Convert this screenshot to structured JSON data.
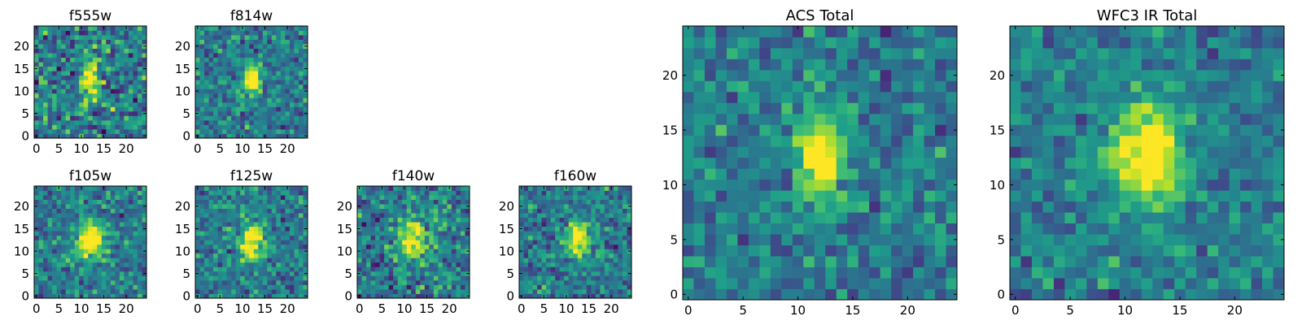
{
  "chart_data": [
    {
      "type": "heatmap",
      "title": "f555w",
      "xlabel": "",
      "ylabel": "",
      "x_range": [
        -0.5,
        24.5
      ],
      "y_range": [
        -0.5,
        24.5
      ],
      "xticks": [
        0,
        5,
        10,
        15,
        20
      ],
      "xtick_labels": [
        "0",
        "5",
        "10",
        "15",
        "20"
      ],
      "yticks": [
        0,
        5,
        10,
        15,
        20
      ],
      "ytick_labels": [
        "0",
        "5",
        "10",
        "15",
        "20"
      ],
      "grid_size": 25,
      "colormap": "viridis",
      "noise": 0.3,
      "source": {
        "cx": 12.0,
        "cy": 13.0,
        "sx": 1.2,
        "sy": 3.0,
        "amp": 1.0
      },
      "seed": 11
    },
    {
      "type": "heatmap",
      "title": "f814w",
      "xlabel": "",
      "ylabel": "",
      "x_range": [
        -0.5,
        24.5
      ],
      "y_range": [
        -0.5,
        24.5
      ],
      "xticks": [
        0,
        5,
        10,
        15,
        20
      ],
      "xtick_labels": [
        "0",
        "5",
        "10",
        "15",
        "20"
      ],
      "yticks": [
        0,
        5,
        10,
        15,
        20
      ],
      "ytick_labels": [
        "0",
        "5",
        "10",
        "15",
        "20"
      ],
      "grid_size": 25,
      "colormap": "viridis",
      "noise": 0.22,
      "source": {
        "cx": 12.0,
        "cy": 12.5,
        "sx": 1.2,
        "sy": 2.5,
        "amp": 1.0
      },
      "seed": 23
    },
    {
      "type": "heatmap",
      "title": "f105w",
      "xlabel": "",
      "ylabel": "",
      "x_range": [
        -0.5,
        24.5
      ],
      "y_range": [
        -0.5,
        24.5
      ],
      "xticks": [
        0,
        5,
        10,
        15,
        20
      ],
      "xtick_labels": [
        "0",
        "5",
        "10",
        "15",
        "20"
      ],
      "yticks": [
        0,
        5,
        10,
        15,
        20
      ],
      "ytick_labels": [
        "0",
        "5",
        "10",
        "15",
        "20"
      ],
      "grid_size": 25,
      "colormap": "viridis",
      "noise": 0.22,
      "source": {
        "cx": 12.0,
        "cy": 12.5,
        "sx": 2.2,
        "sy": 2.8,
        "amp": 1.0
      },
      "seed": 37
    },
    {
      "type": "heatmap",
      "title": "f125w",
      "xlabel": "",
      "ylabel": "",
      "x_range": [
        -0.5,
        24.5
      ],
      "y_range": [
        -0.5,
        24.5
      ],
      "xticks": [
        0,
        5,
        10,
        15,
        20
      ],
      "xtick_labels": [
        "0",
        "5",
        "10",
        "15",
        "20"
      ],
      "yticks": [
        0,
        5,
        10,
        15,
        20
      ],
      "ytick_labels": [
        "0",
        "5",
        "10",
        "15",
        "20"
      ],
      "grid_size": 25,
      "colormap": "viridis",
      "noise": 0.22,
      "source": {
        "cx": 12.0,
        "cy": 12.0,
        "sx": 1.8,
        "sy": 2.6,
        "amp": 1.0
      },
      "seed": 41
    },
    {
      "type": "heatmap",
      "title": "f140w",
      "xlabel": "",
      "ylabel": "",
      "x_range": [
        -0.5,
        24.5
      ],
      "y_range": [
        -0.5,
        24.5
      ],
      "xticks": [
        0,
        5,
        10,
        15,
        20
      ],
      "xtick_labels": [
        "0",
        "5",
        "10",
        "15",
        "20"
      ],
      "yticks": [
        0,
        5,
        10,
        15,
        20
      ],
      "ytick_labels": [
        "0",
        "5",
        "10",
        "15",
        "20"
      ],
      "grid_size": 25,
      "colormap": "viridis",
      "noise": 0.26,
      "source": {
        "cx": 12.0,
        "cy": 12.5,
        "sx": 2.4,
        "sy": 3.0,
        "amp": 0.85
      },
      "seed": 53
    },
    {
      "type": "heatmap",
      "title": "f160w",
      "xlabel": "",
      "ylabel": "",
      "x_range": [
        -0.5,
        24.5
      ],
      "y_range": [
        -0.5,
        24.5
      ],
      "xticks": [
        0,
        5,
        10,
        15,
        20
      ],
      "xtick_labels": [
        "0",
        "5",
        "10",
        "15",
        "20"
      ],
      "yticks": [
        0,
        5,
        10,
        15,
        20
      ],
      "ytick_labels": [
        "0",
        "5",
        "10",
        "15",
        "20"
      ],
      "grid_size": 25,
      "colormap": "viridis",
      "noise": 0.22,
      "source": {
        "cx": 12.5,
        "cy": 13.0,
        "sx": 1.8,
        "sy": 2.6,
        "amp": 1.0
      },
      "seed": 67
    },
    {
      "type": "heatmap",
      "title": "ACS Total",
      "xlabel": "",
      "ylabel": "",
      "x_range": [
        -0.5,
        24.5
      ],
      "y_range": [
        -0.5,
        24.5
      ],
      "xticks": [
        0,
        5,
        10,
        15,
        20
      ],
      "xtick_labels": [
        "0",
        "5",
        "10",
        "15",
        "20"
      ],
      "yticks": [
        0,
        5,
        10,
        15,
        20
      ],
      "ytick_labels": [
        "0",
        "5",
        "10",
        "15",
        "20"
      ],
      "grid_size": 25,
      "colormap": "viridis",
      "noise": 0.2,
      "source": {
        "cx": 12.0,
        "cy": 12.5,
        "sx": 1.3,
        "sy": 2.8,
        "amp": 1.0
      },
      "seed": 79
    },
    {
      "type": "heatmap",
      "title": "WFC3 IR Total",
      "xlabel": "",
      "ylabel": "",
      "x_range": [
        -0.5,
        24.5
      ],
      "y_range": [
        -0.5,
        24.5
      ],
      "xticks": [
        0,
        5,
        10,
        15,
        20
      ],
      "xtick_labels": [
        "0",
        "5",
        "10",
        "15",
        "20"
      ],
      "yticks": [
        0,
        5,
        10,
        15,
        20
      ],
      "ytick_labels": [
        "0",
        "5",
        "10",
        "15",
        "20"
      ],
      "grid_size": 25,
      "colormap": "viridis",
      "noise": 0.18,
      "source": {
        "cx": 12.0,
        "cy": 12.5,
        "sx": 2.2,
        "sy": 3.0,
        "amp": 1.0
      },
      "seed": 97
    }
  ],
  "colors": {
    "viridis_stops": [
      "#440154",
      "#482878",
      "#3e4989",
      "#31688e",
      "#26828e",
      "#1f9e89",
      "#35b779",
      "#6ece58",
      "#b5de2b",
      "#fde725"
    ],
    "axis": "#000000",
    "background": "#ffffff"
  }
}
